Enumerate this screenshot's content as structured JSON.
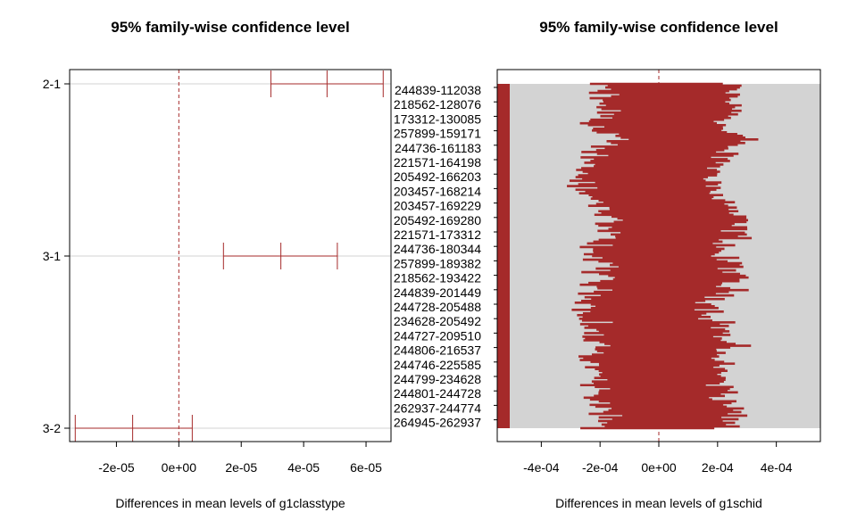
{
  "chart_data": [
    {
      "type": "interval",
      "title": "95% family-wise confidence level",
      "xlabel": "Differences in mean levels of g1classtype",
      "ylabel": "",
      "xlim": [
        -3.5e-05,
        6.8e-05
      ],
      "x_ticks": [
        -2e-05,
        0,
        2e-05,
        4e-05,
        6e-05
      ],
      "x_tick_labels": [
        "-2e-05",
        "0e+00",
        "2e-05",
        "4e-05",
        "6e-05"
      ],
      "reference_line": 0,
      "grid": "horizontal lines at each comparison",
      "color": "#a52a2a",
      "comparisons": [
        {
          "label": "2-1",
          "lwr": 2.95e-05,
          "diff": 4.75e-05,
          "upr": 6.55e-05
        },
        {
          "label": "3-1",
          "lwr": 1.43e-05,
          "diff": 3.27e-05,
          "upr": 5.08e-05
        },
        {
          "label": "3-2",
          "lwr": -3.32e-05,
          "diff": -1.48e-05,
          "upr": 4.3e-06
        }
      ]
    },
    {
      "type": "interval",
      "title": "95% family-wise confidence level",
      "xlabel": "Differences in mean levels of g1schid",
      "ylabel": "",
      "xlim": [
        -0.00055,
        0.00055
      ],
      "x_ticks": [
        -0.0004,
        -0.0002,
        0,
        0.0002,
        0.0004
      ],
      "x_tick_labels": [
        "-4e-04",
        "-2e-04",
        "0e+00",
        "2e-04",
        "4e-04"
      ],
      "reference_line": 0,
      "grid": "horizontal lines at each comparison (dense, appears as grey band)",
      "color": "#a52a2a",
      "visible_comparison_labels": [
        "244839-112038",
        "218562-128076",
        "173312-130085",
        "257899-159171",
        "244736-161183",
        "221571-164198",
        "205492-166203",
        "203457-168214",
        "203457-169229",
        "205492-169280",
        "221571-173312",
        "244736-180344",
        "257899-189382",
        "218562-193422",
        "244839-201449",
        "244728-205488",
        "234628-205492",
        "244727-209510",
        "244806-216537",
        "244746-225585",
        "244799-234628",
        "244801-244728",
        "262937-244774",
        "264945-262937"
      ],
      "interval_half_width_approx": 0.00022
    }
  ]
}
